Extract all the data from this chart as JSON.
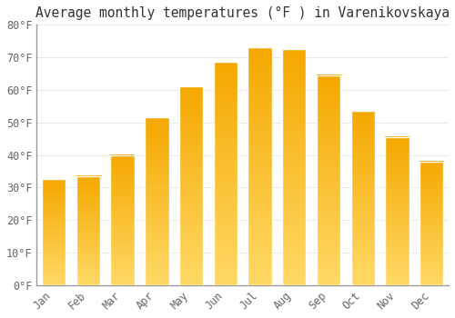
{
  "title": "Average monthly temperatures (°F ) in Varenikovskaya",
  "months": [
    "Jan",
    "Feb",
    "Mar",
    "Apr",
    "May",
    "Jun",
    "Jul",
    "Aug",
    "Sep",
    "Oct",
    "Nov",
    "Dec"
  ],
  "values": [
    32.5,
    33.5,
    40.0,
    51.5,
    61.0,
    68.5,
    73.0,
    72.5,
    64.5,
    53.5,
    45.5,
    38.0
  ],
  "bar_color_dark": "#F5A800",
  "bar_color_light": "#FFD966",
  "background_color": "#FFFFFF",
  "grid_color": "#E8E8E8",
  "ylim": [
    0,
    80
  ],
  "yticks": [
    0,
    10,
    20,
    30,
    40,
    50,
    60,
    70,
    80
  ],
  "ytick_labels": [
    "0°F",
    "10°F",
    "20°F",
    "30°F",
    "40°F",
    "50°F",
    "60°F",
    "70°F",
    "80°F"
  ],
  "title_fontsize": 10.5,
  "tick_fontsize": 8.5,
  "title_color": "#333333",
  "tick_color": "#666666",
  "bar_edge_color": "#FFFFFF",
  "bar_width": 0.7
}
